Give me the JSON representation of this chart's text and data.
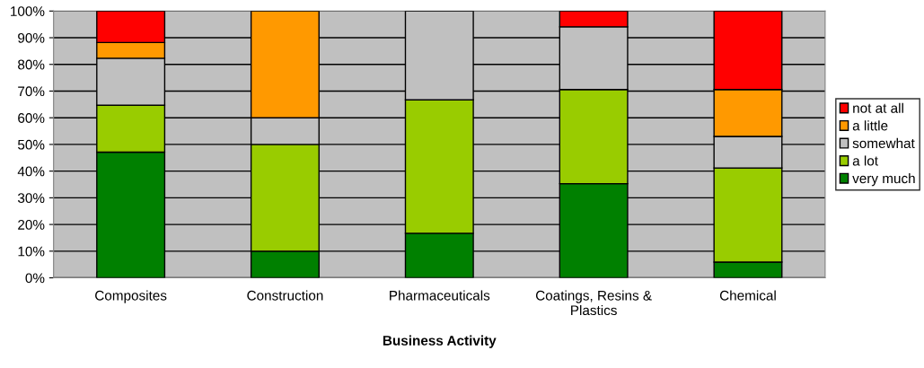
{
  "chart_data": {
    "type": "bar",
    "stacked": true,
    "xlabel": "Business Activity",
    "categories": [
      "Composites",
      "Construction",
      "Pharmaceuticals",
      "Coatings, Resins &\nPlastics",
      "Chemical"
    ],
    "series": [
      {
        "name": "very much",
        "color": "#008000",
        "values": [
          47.1,
          10,
          16.7,
          35.3,
          5.9
        ]
      },
      {
        "name": "a lot",
        "color": "#99cc00",
        "values": [
          17.6,
          40,
          50,
          35.3,
          35.3
        ]
      },
      {
        "name": "somewhat",
        "color": "#c0c0c0",
        "values": [
          17.6,
          10,
          33.3,
          23.5,
          11.8
        ]
      },
      {
        "name": "a little",
        "color": "#ff9900",
        "values": [
          5.9,
          40,
          0,
          0,
          17.6
        ]
      },
      {
        "name": "not at all",
        "color": "#ff0000",
        "values": [
          11.8,
          0,
          0,
          5.9,
          29.4
        ]
      }
    ],
    "ylim": [
      0,
      100
    ],
    "yticks": [
      {
        "value": 0,
        "label": "0%"
      },
      {
        "value": 10,
        "label": "10%"
      },
      {
        "value": 20,
        "label": "20%"
      },
      {
        "value": 30,
        "label": "30%"
      },
      {
        "value": 40,
        "label": "40%"
      },
      {
        "value": 50,
        "label": "50%"
      },
      {
        "value": 60,
        "label": "60%"
      },
      {
        "value": 70,
        "label": "70%"
      },
      {
        "value": 80,
        "label": "80%"
      },
      {
        "value": 90,
        "label": "90%"
      },
      {
        "value": 100,
        "label": "100%"
      }
    ],
    "grid": "y",
    "legend": "right"
  }
}
